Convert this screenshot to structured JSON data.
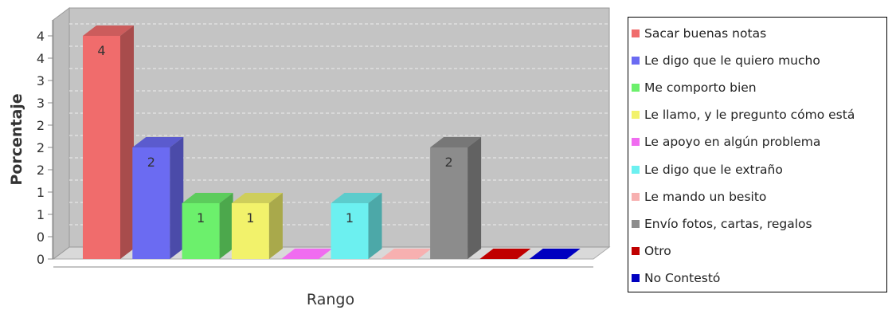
{
  "chart_data": {
    "type": "bar",
    "title": "",
    "xlabel": "Rango",
    "ylabel": "Porcentaje",
    "y_tick_labels": [
      "0",
      "0",
      "1",
      "1",
      "2",
      "2",
      "2",
      "3",
      "3",
      "4",
      "4"
    ],
    "ylim": [
      0,
      4
    ],
    "grid": true,
    "legend_position": "right",
    "categories": [
      "Sacar buenas notas",
      "Le digo que le quiero mucho",
      "Me comporto bien",
      "Le llamo, y le pregunto cómo está",
      "Le apoyo en algún problema",
      "Le digo que le extraño",
      "Le mando un besito",
      "Envío fotos, cartas, regalos",
      "Otro",
      "No Contestó"
    ],
    "values": [
      4,
      2,
      1,
      1,
      0,
      1,
      0,
      2,
      0,
      0
    ],
    "data_labels": [
      "4",
      "2",
      "1",
      "1",
      "",
      "1",
      "",
      "2",
      "",
      ""
    ],
    "colors": [
      "#f06c6c",
      "#6b6bf2",
      "#6cf06c",
      "#f2f26b",
      "#f06cf0",
      "#6cf0f0",
      "#f7b0b0",
      "#8c8c8c",
      "#c00000",
      "#0000c0"
    ]
  }
}
